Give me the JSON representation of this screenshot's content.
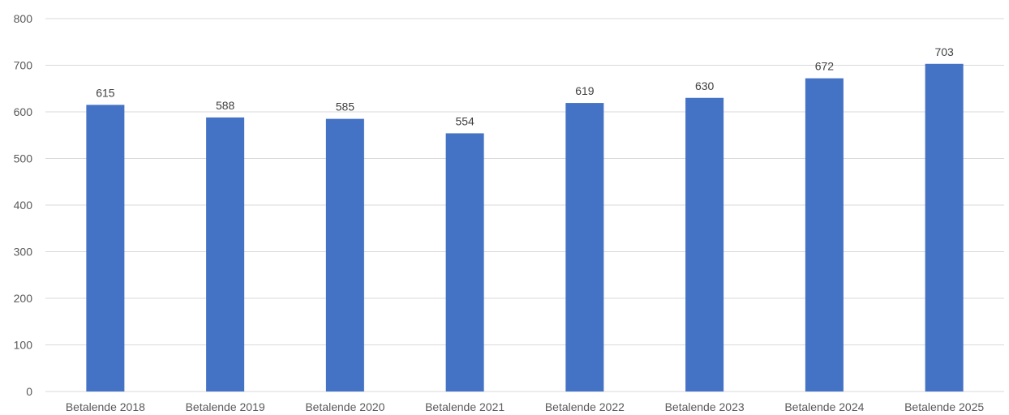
{
  "chart_data": {
    "type": "bar",
    "categories": [
      "Betalende 2018",
      "Betalende 2019",
      "Betalende 2020",
      "Betalende 2021",
      "Betalende 2022",
      "Betalende 2023",
      "Betalende 2024",
      "Betalende 2025"
    ],
    "values": [
      615,
      588,
      585,
      554,
      619,
      630,
      672,
      703
    ],
    "ylim": [
      0,
      800
    ],
    "yticks": [
      "0",
      "100",
      "200",
      "300",
      "400",
      "500",
      "600",
      "700",
      "800"
    ],
    "title": "",
    "xlabel": "",
    "ylabel": "",
    "grid": true,
    "legend": "none",
    "data_labels": true,
    "colors": {
      "bar": "#4472C4",
      "gridline": "#D9D9D9",
      "tick_text": "#595959",
      "data_label_text": "#404040"
    }
  }
}
